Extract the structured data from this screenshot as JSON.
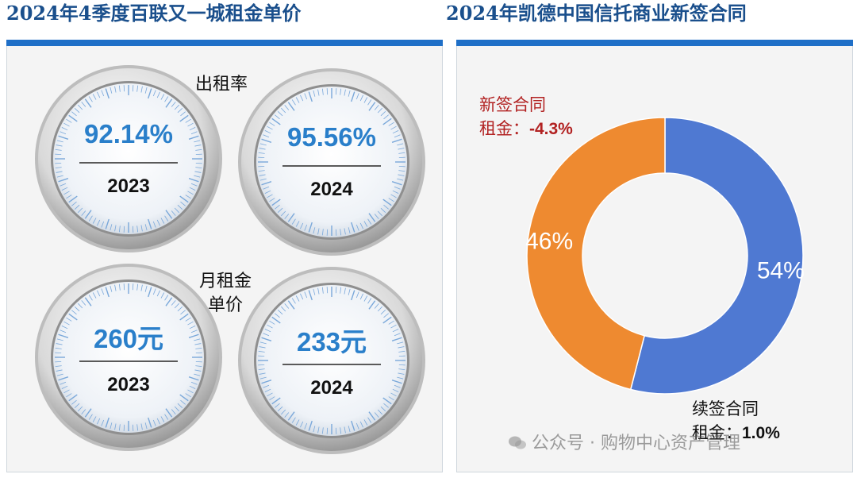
{
  "left_panel": {
    "title": "2024年4季度百联又一城租金单价",
    "occupancy_caption": "出租率",
    "rent_caption_line1": "月租金",
    "rent_caption_line2": "单价",
    "gauges": [
      {
        "value": "92.14%",
        "year": "2023"
      },
      {
        "value": "95.56%",
        "year": "2024"
      },
      {
        "value": "260元",
        "year": "2023"
      },
      {
        "value": "233元",
        "year": "2024"
      }
    ]
  },
  "right_panel": {
    "title": "2024年凯德中国信托商业新签合同",
    "new_label_line1": "新签合同",
    "new_label_line2_prefix": "租金：",
    "new_label_line2_value": "-4.3%",
    "renew_label_line1": "续签合同",
    "renew_label_line2_prefix": "租金：",
    "renew_label_line2_value": "1.0%"
  },
  "chart_data": {
    "type": "pie",
    "donut": true,
    "slices": [
      {
        "label": "54%",
        "value": 54,
        "color": "#4f79d2"
      },
      {
        "label": "46%",
        "value": 46,
        "color": "#ee8a30"
      }
    ]
  },
  "watermark": "公众号 · 购物中心资产管理",
  "colors": {
    "accent_bar": "#1f6fc7",
    "title": "#1a4f8c",
    "gauge_value": "#2a7fca",
    "negative_text": "#b22222"
  }
}
